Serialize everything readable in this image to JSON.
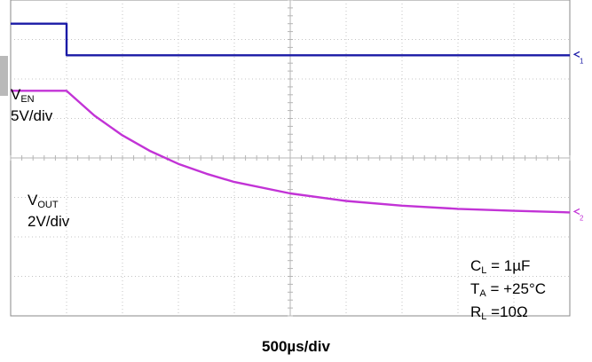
{
  "chart_data": {
    "type": "line",
    "xlabel": "500µs/div",
    "x_divisions": 10,
    "y_divisions": 8,
    "x_unit": "ms",
    "series": [
      {
        "name": "V",
        "name_sub": "EN",
        "scale": "5V/div",
        "color": "#1a1aa6",
        "x": [
          0,
          0.5,
          0.5,
          5.0
        ],
        "y_div": [
          7.4,
          7.4,
          6.6,
          6.6
        ]
      },
      {
        "name": "V",
        "name_sub": "OUT",
        "scale": "2V/div",
        "color": "#c233d6",
        "x": [
          0,
          0.5,
          0.75,
          1.0,
          1.25,
          1.5,
          1.75,
          2.0,
          2.5,
          3.0,
          3.5,
          4.0,
          4.5,
          5.0
        ],
        "y_div": [
          5.7,
          5.7,
          5.07,
          4.57,
          4.17,
          3.85,
          3.6,
          3.39,
          3.1,
          2.91,
          2.79,
          2.71,
          2.66,
          2.62
        ]
      }
    ],
    "conditions": [
      {
        "sym": "C",
        "sub": "L",
        "rest": " = 1µF"
      },
      {
        "sym": "T",
        "sub": "A",
        "rest": " = +25°C"
      },
      {
        "sym": "R",
        "sub": "L",
        "rest": " =10Ω"
      }
    ],
    "markers": [
      "1",
      "2"
    ]
  }
}
